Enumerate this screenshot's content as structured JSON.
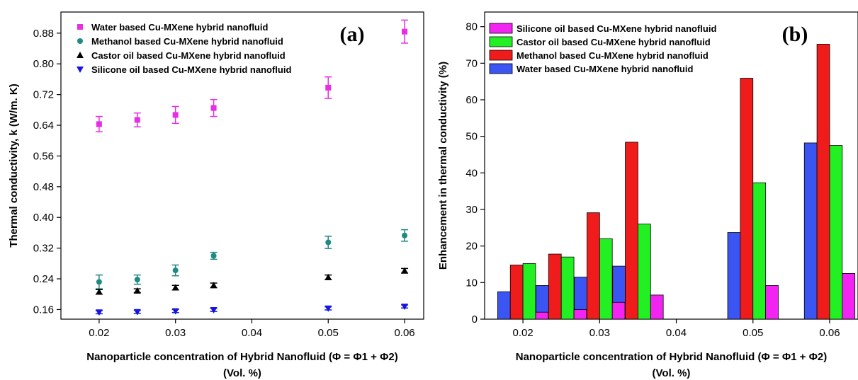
{
  "chart_data": [
    {
      "type": "scatter",
      "panel_label": "(a)",
      "xlabel": "Nanoparticle concentration of Hybrid Nanofluid (Φ = Φ1 + Φ2)",
      "xlabel_line2": "(Vol. %)",
      "ylabel": "Thermal conductivity, k (W/m. K)",
      "xlim": [
        0.015,
        0.0625
      ],
      "ylim": [
        0.135,
        0.935
      ],
      "xticks": [
        0.02,
        0.03,
        0.04,
        0.05,
        0.06
      ],
      "xtick_labels": [
        "0.02",
        "0.03",
        "0.04",
        "0.05",
        "0.06"
      ],
      "yticks": [
        0.16,
        0.24,
        0.32,
        0.4,
        0.48,
        0.56,
        0.64,
        0.72,
        0.8,
        0.88
      ],
      "ytick_labels": [
        "0.16",
        "0.24",
        "0.32",
        "0.40",
        "0.48",
        "0.56",
        "0.64",
        "0.72",
        "0.80",
        "0.88"
      ],
      "legend_position": "top-left",
      "series": [
        {
          "name": "Water based Cu-MXene hybrid nanofluid",
          "marker": "square",
          "color": "#e62ee6",
          "x": [
            0.02,
            0.025,
            0.03,
            0.035,
            0.05,
            0.06
          ],
          "y": [
            0.643,
            0.654,
            0.667,
            0.685,
            0.738,
            0.884
          ],
          "err": [
            0.02,
            0.018,
            0.022,
            0.022,
            0.028,
            0.03
          ]
        },
        {
          "name": "Methanol based Cu-MXene hybrid nanofluid",
          "marker": "circle",
          "color": "#1f8a84",
          "x": [
            0.02,
            0.025,
            0.03,
            0.035,
            0.05,
            0.06
          ],
          "y": [
            0.232,
            0.238,
            0.262,
            0.3,
            0.335,
            0.353
          ],
          "err": [
            0.018,
            0.012,
            0.014,
            0.009,
            0.016,
            0.015
          ]
        },
        {
          "name": "Castor oil based Cu-MXene hybrid nanofluid",
          "marker": "triangle-up",
          "color": "#000000",
          "x": [
            0.02,
            0.025,
            0.03,
            0.035,
            0.05,
            0.06
          ],
          "y": [
            0.206,
            0.209,
            0.217,
            0.223,
            0.244,
            0.261
          ],
          "err": [
            0.006,
            0.005,
            0.006,
            0.006,
            0.006,
            0.006
          ]
        },
        {
          "name": "Silicone oil based Cu-MXene hybrid nanofluid",
          "marker": "triangle-down",
          "color": "#1515e0",
          "x": [
            0.02,
            0.025,
            0.03,
            0.035,
            0.05,
            0.06
          ],
          "y": [
            0.153,
            0.154,
            0.156,
            0.159,
            0.163,
            0.168
          ],
          "err": [
            0.004,
            0.004,
            0.004,
            0.004,
            0.004,
            0.004
          ]
        }
      ]
    },
    {
      "type": "bar",
      "panel_label": "(b)",
      "xlabel": "Nanoparticle concentration of Hybrid Nanofluid (Φ = Φ1 + Φ2)",
      "xlabel_line2": "(Vol. %)",
      "ylabel": "Enhancement in thermal conductivity (%)",
      "xlim": [
        0.015,
        0.0637
      ],
      "ylim": [
        0,
        84
      ],
      "xticks": [
        0.02,
        0.03,
        0.04,
        0.05,
        0.06
      ],
      "xtick_labels": [
        "0.02",
        "0.03",
        "0.04",
        "0.05",
        "0.06"
      ],
      "yticks": [
        0,
        10,
        20,
        30,
        40,
        50,
        60,
        70,
        80
      ],
      "ytick_labels": [
        "0",
        "10",
        "20",
        "30",
        "40",
        "50",
        "60",
        "70",
        "80"
      ],
      "bar_width": 0.00165,
      "legend_position": "top-left",
      "categories": [
        0.02,
        0.025,
        0.03,
        0.035,
        0.05,
        0.06
      ],
      "series": [
        {
          "name": "Water based Cu-MXene hybrid nanofluid",
          "color": "#3a55f2",
          "offset": -3,
          "values": [
            7.5,
            9.2,
            11.5,
            14.5,
            23.7,
            48.2
          ]
        },
        {
          "name": "Methanol based Cu-MXene hybrid nanofluid",
          "color": "#f01b1b",
          "offset": -1,
          "values": [
            14.8,
            17.8,
            29.1,
            48.4,
            65.9,
            75.2
          ]
        },
        {
          "name": "Castor oil based Cu-MXene hybrid nanofluid",
          "color": "#22f022",
          "offset": 1,
          "values": [
            15.2,
            17.0,
            22.0,
            26.0,
            37.3,
            47.5
          ]
        },
        {
          "name": "Silicone oil based Cu-MXene hybrid nanofluid",
          "color": "#f224f2",
          "offset": 3,
          "values": [
            1.9,
            2.6,
            4.6,
            6.6,
            9.2,
            12.5
          ]
        }
      ],
      "legend_order": [
        3,
        2,
        1,
        0
      ]
    }
  ]
}
